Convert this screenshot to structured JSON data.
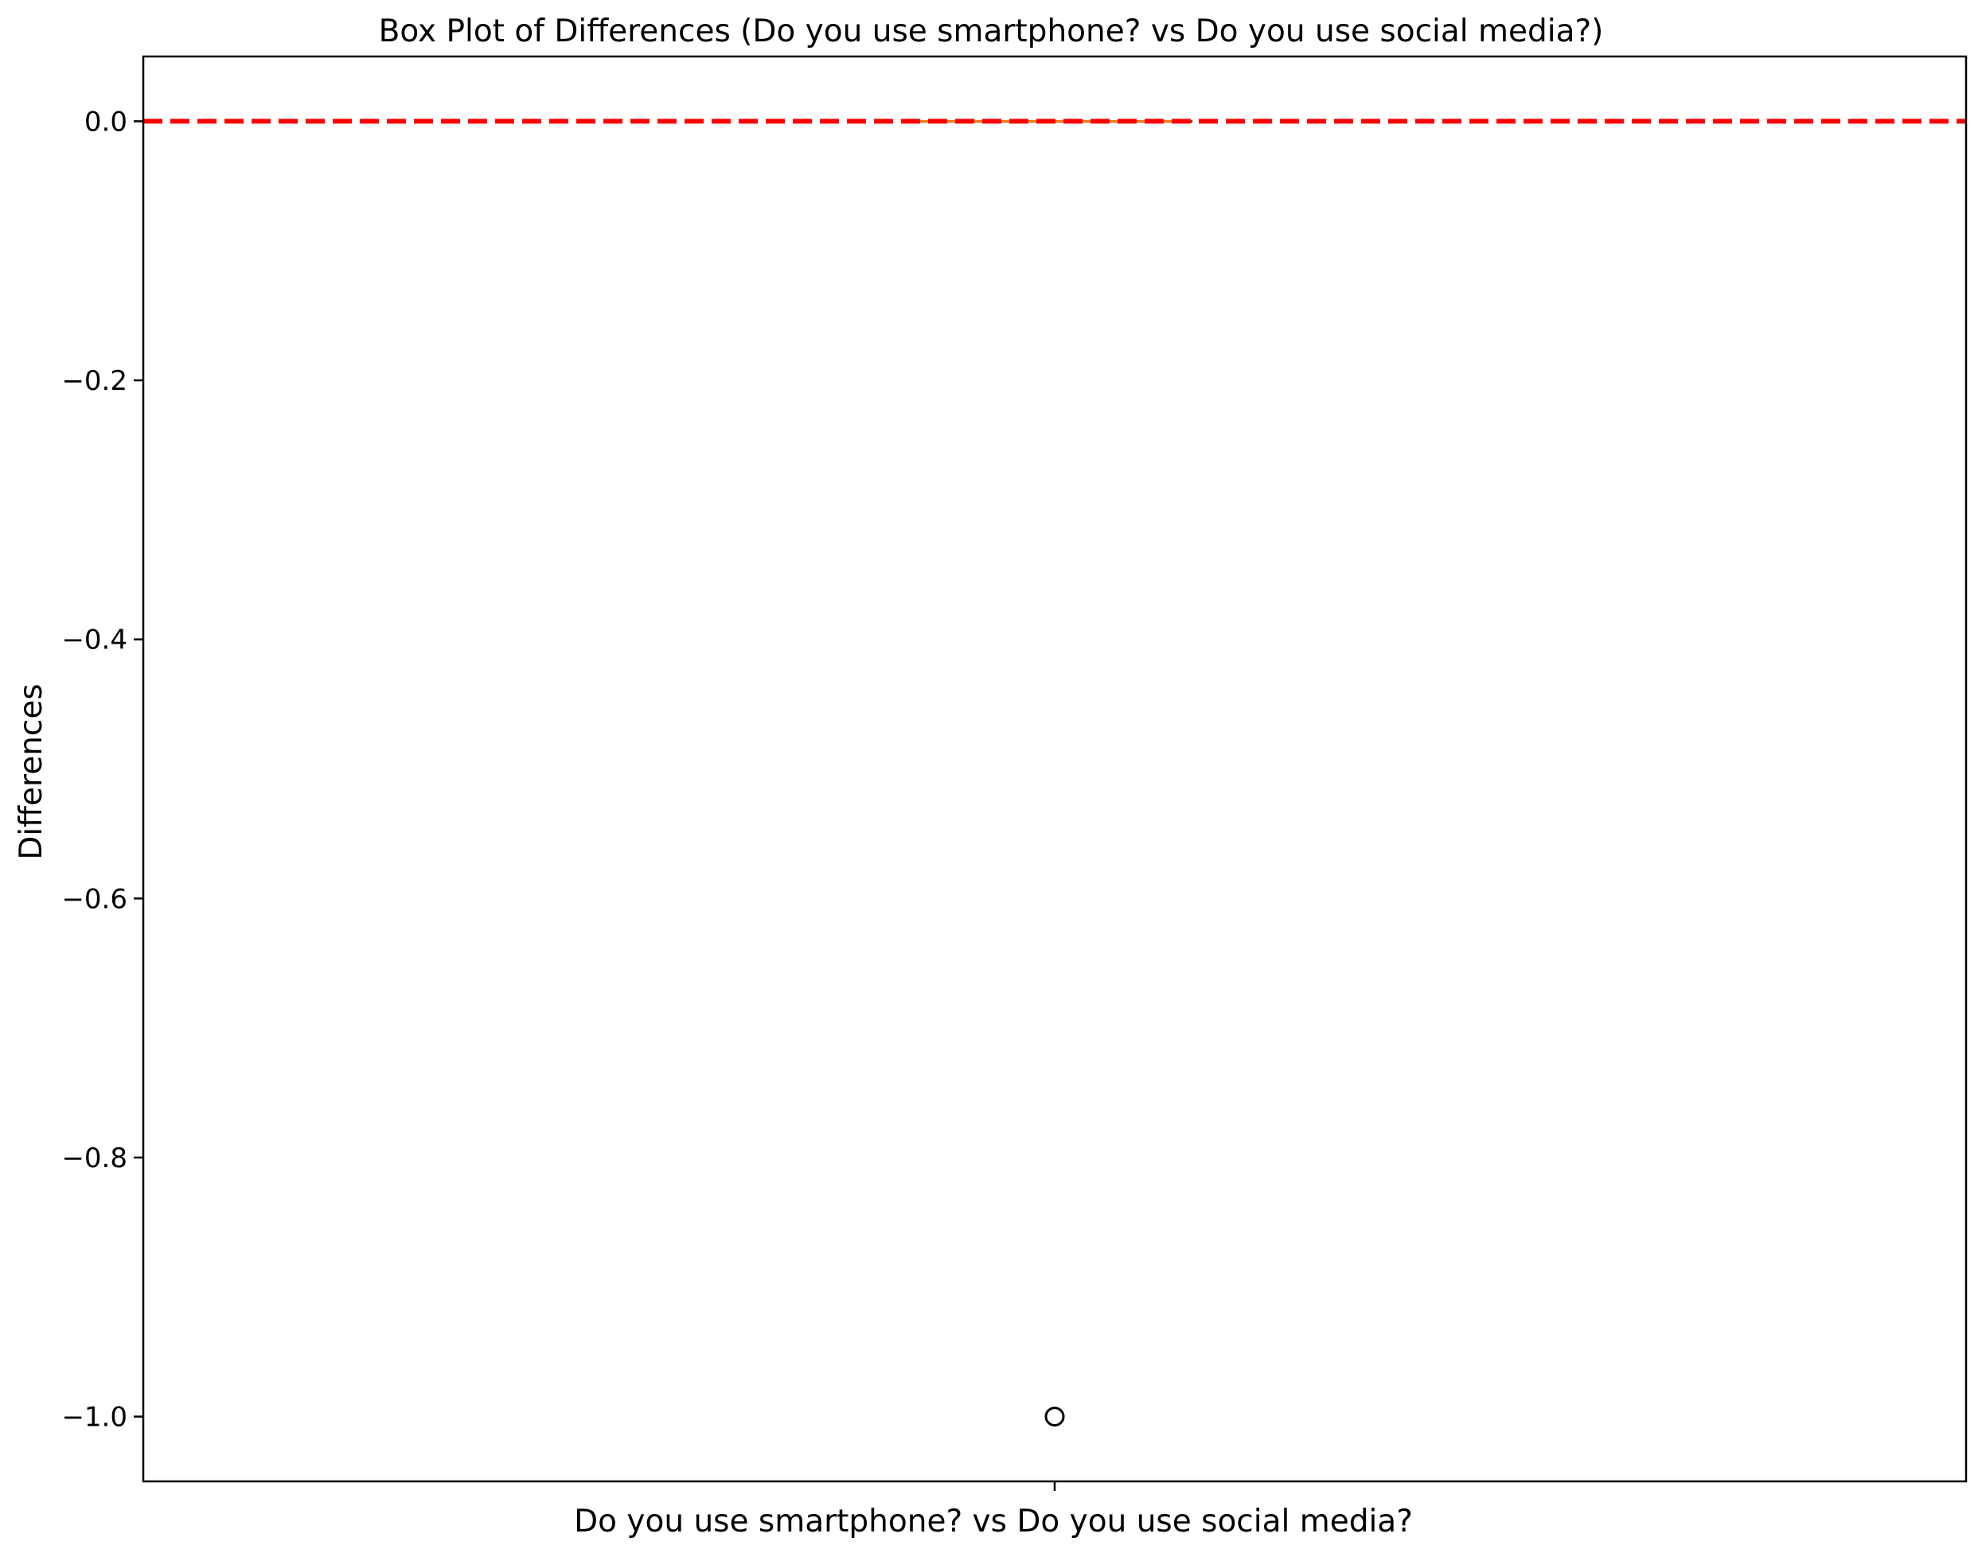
{
  "chart_data": {
    "type": "box",
    "title": "Box Plot of Differences (Do you use smartphone? vs Do you use social media?)",
    "xlabel": "",
    "ylabel": "Differences",
    "categories": [
      "Do you use smartphone? vs Do you use social media?"
    ],
    "ylim": [
      -1.05,
      0.05
    ],
    "yticks": [
      {
        "value": 0.0,
        "label": "0.0"
      },
      {
        "value": -0.2,
        "label": "−0.2"
      },
      {
        "value": -0.4,
        "label": "−0.4"
      },
      {
        "value": -0.6,
        "label": "−0.6"
      },
      {
        "value": -0.8,
        "label": "−0.8"
      },
      {
        "value": -1.0,
        "label": "−1.0"
      }
    ],
    "boxes": [
      {
        "category": "Do you use smartphone? vs Do you use social media?",
        "min": 0.0,
        "q1": 0.0,
        "median": 0.0,
        "q3": 0.0,
        "max": 0.0,
        "outliers": [
          -1.0
        ]
      }
    ],
    "reference_line": {
      "y": 0.0,
      "style": "dashed",
      "color": "#ff0000"
    },
    "median_color": "#ff7f0e",
    "grid": false,
    "legend": "none"
  }
}
